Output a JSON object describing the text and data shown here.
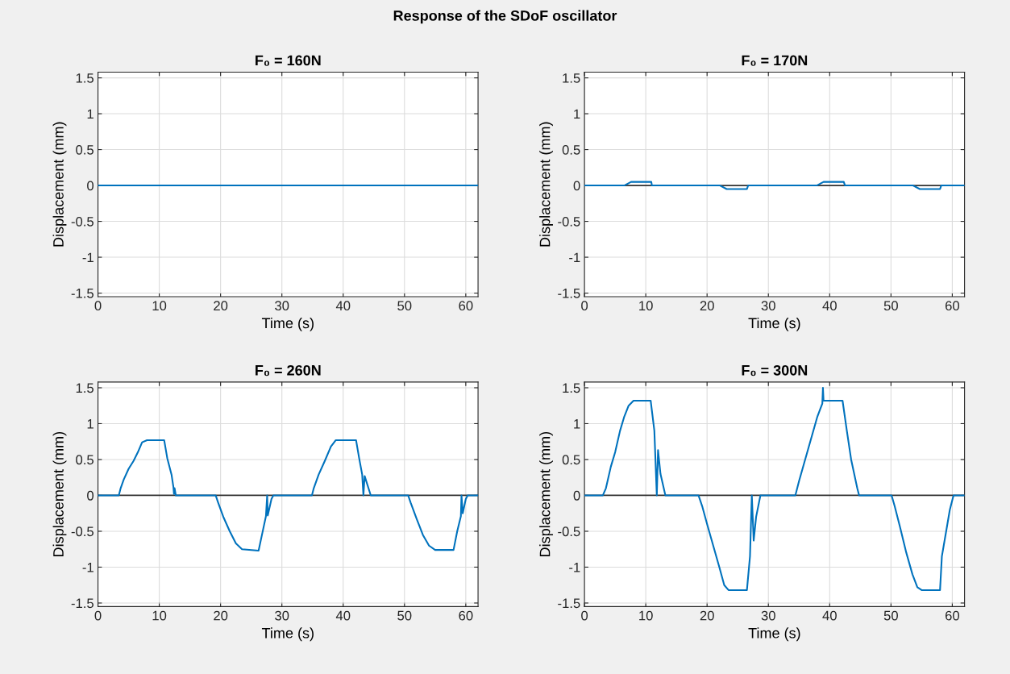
{
  "chart_data": [
    {
      "type": "line",
      "annotations": [
        "Response of the SDoF oscillator"
      ],
      "title": "F₀ = 160N",
      "xlabel": "Time (s)",
      "ylabel": "Displacement (mm)",
      "xlim": [
        0,
        62
      ],
      "ylim": [
        -1.55,
        1.58
      ],
      "xticks": [
        0,
        10,
        20,
        30,
        40,
        50,
        60
      ],
      "yticks": [
        -1.5,
        -1,
        -0.5,
        0,
        0.5,
        1,
        1.5
      ],
      "grid": true,
      "series": [
        {
          "color": "#0072bd",
          "x": [
            0,
            62
          ],
          "values": [
            0,
            0
          ]
        }
      ]
    },
    {
      "type": "line",
      "title": "F₀ = 170N",
      "xlabel": "Time (s)",
      "ylabel": "Displacement (mm)",
      "xlim": [
        0,
        62
      ],
      "ylim": [
        -1.55,
        1.58
      ],
      "xticks": [
        0,
        10,
        20,
        30,
        40,
        50,
        60
      ],
      "yticks": [
        -1.5,
        -1,
        -0.5,
        0,
        0.5,
        1,
        1.5
      ],
      "grid": true,
      "ref_lines": [
        {
          "axis": "y",
          "value": 0,
          "color": "#333333"
        }
      ],
      "series": [
        {
          "color": "#0072bd",
          "x": [
            0,
            6.5,
            7.6,
            10.9,
            11.0,
            22.1,
            23.2,
            26.5,
            26.7,
            37.9,
            39.0,
            42.3,
            42.5,
            53.6,
            54.7,
            58,
            58.2,
            62
          ],
          "values": [
            0,
            0,
            0.05,
            0.05,
            0,
            0,
            -0.05,
            -0.05,
            0,
            0,
            0.05,
            0.05,
            0,
            0,
            -0.05,
            -0.05,
            0,
            0
          ]
        }
      ]
    },
    {
      "type": "line",
      "title": "F₀ = 260N",
      "xlabel": "Time (s)",
      "ylabel": "Displacement (mm)",
      "xlim": [
        0,
        62
      ],
      "ylim": [
        -1.55,
        1.58
      ],
      "xticks": [
        0,
        10,
        20,
        30,
        40,
        50,
        60
      ],
      "yticks": [
        -1.5,
        -1,
        -0.5,
        0,
        0.5,
        1,
        1.5
      ],
      "grid": true,
      "ref_lines": [
        {
          "axis": "y",
          "value": 0,
          "color": "#333333"
        }
      ],
      "series": [
        {
          "color": "#0072bd",
          "x": [
            0,
            3.4,
            3.7,
            4.2,
            5.0,
            5.8,
            6.5,
            7.2,
            8.0,
            10.8,
            11.3,
            12.0,
            12.3,
            12.4,
            12.5,
            12.7,
            19.2,
            19.6,
            20.5,
            21.5,
            22.5,
            23.5,
            26.2,
            26.8,
            27.4,
            27.6,
            27.7,
            28.3,
            28.6,
            34.9,
            35.2,
            36.0,
            37.0,
            38.0,
            38.8,
            42.1,
            42.6,
            43.1,
            43.3,
            43.5,
            44.5,
            50.6,
            51.0,
            52.0,
            53.0,
            54.0,
            55.0,
            58.0,
            58.6,
            59.2,
            59.3,
            59.5,
            60.0,
            60.3,
            62
          ],
          "values": [
            0,
            0,
            0.1,
            0.22,
            0.37,
            0.48,
            0.6,
            0.74,
            0.77,
            0.77,
            0.52,
            0.29,
            0.12,
            0.02,
            0.1,
            0,
            0,
            -0.1,
            -0.31,
            -0.5,
            -0.67,
            -0.75,
            -0.77,
            -0.53,
            -0.29,
            0,
            -0.28,
            -0.05,
            0,
            0,
            0.1,
            0.29,
            0.48,
            0.68,
            0.77,
            0.77,
            0.52,
            0.29,
            0,
            0.27,
            0,
            0,
            -0.1,
            -0.33,
            -0.55,
            -0.7,
            -0.76,
            -0.76,
            -0.5,
            -0.29,
            0,
            -0.25,
            -0.05,
            0,
            0
          ]
        }
      ]
    },
    {
      "type": "line",
      "title": "F₀ = 300N",
      "xlabel": "Time (s)",
      "ylabel": "Displacement (mm)",
      "xlim": [
        0,
        62
      ],
      "ylim": [
        -1.55,
        1.58
      ],
      "xticks": [
        0,
        10,
        20,
        30,
        40,
        50,
        60
      ],
      "yticks": [
        -1.5,
        -1,
        -0.5,
        0,
        0.5,
        1,
        1.5
      ],
      "grid": true,
      "ref_lines": [
        {
          "axis": "y",
          "value": 0,
          "color": "#333333"
        }
      ],
      "series": [
        {
          "color": "#0072bd",
          "x": [
            0,
            3.0,
            3.5,
            4.3,
            5.0,
            5.8,
            6.5,
            7.2,
            8.0,
            10.8,
            11.4,
            11.8,
            12.0,
            12.4,
            13.2,
            18.6,
            19.2,
            20.0,
            21.0,
            22.0,
            22.8,
            23.5,
            26.5,
            27.0,
            27.3,
            27.6,
            28.0,
            28.7,
            34.4,
            35.0,
            36.0,
            37.0,
            38.0,
            38.8,
            38.9,
            39.0,
            42.1,
            42.8,
            43.5,
            44.5,
            44.8,
            50.1,
            50.6,
            51.5,
            52.5,
            53.5,
            54.3,
            55.0,
            58.0,
            58.3,
            59.0,
            59.6,
            60.2,
            62
          ],
          "values": [
            0,
            0,
            0.1,
            0.4,
            0.6,
            0.9,
            1.1,
            1.25,
            1.32,
            1.32,
            0.9,
            0,
            0.63,
            0.3,
            0,
            0,
            -0.15,
            -0.4,
            -0.7,
            -1.0,
            -1.25,
            -1.32,
            -1.32,
            -0.85,
            0,
            -0.63,
            -0.3,
            0,
            0,
            0.2,
            0.5,
            0.8,
            1.1,
            1.28,
            1.5,
            1.32,
            1.32,
            0.9,
            0.5,
            0.1,
            0,
            0,
            -0.15,
            -0.45,
            -0.8,
            -1.1,
            -1.28,
            -1.32,
            -1.32,
            -0.85,
            -0.5,
            -0.2,
            0,
            0
          ]
        }
      ]
    }
  ]
}
